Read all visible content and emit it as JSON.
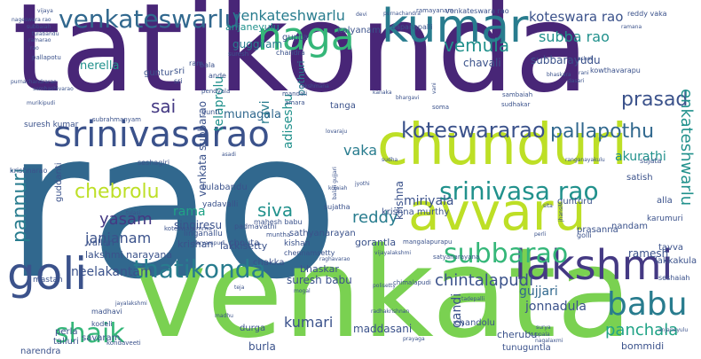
{
  "palette": {
    "dark_purple": "#482677",
    "violet": "#443983",
    "indigo": "#3b528b",
    "blue": "#31688e",
    "teal": "#287c8e",
    "cyan": "#21918c",
    "sea": "#20a386",
    "green": "#35b779",
    "lime": "#7ad151",
    "yellow_green": "#bddf26"
  },
  "words": [
    {
      "text": "tatikonda"
    },
    {
      "text": "rao"
    },
    {
      "text": "venkata"
    },
    {
      "text": "kumar"
    },
    {
      "text": "chunduri"
    },
    {
      "text": "srinivasarao"
    },
    {
      "text": "avvaru"
    },
    {
      "text": "lakshmi"
    },
    {
      "text": "srinivasa rao"
    },
    {
      "text": "goli"
    },
    {
      "text": "naga"
    },
    {
      "text": "venkateswarlu"
    },
    {
      "text": "venkateshwarlu"
    },
    {
      "text": "koteswara rao"
    },
    {
      "text": "koteswararao"
    },
    {
      "text": "subba rao"
    },
    {
      "text": "subbarayudu"
    },
    {
      "text": "vemula"
    },
    {
      "text": "prasad"
    },
    {
      "text": "pallapothu"
    },
    {
      "text": "enkateshwarlu"
    },
    {
      "text": "pannuri"
    },
    {
      "text": "chebrolu"
    },
    {
      "text": "sai"
    },
    {
      "text": "vaka"
    },
    {
      "text": "siva"
    },
    {
      "text": "rama"
    },
    {
      "text": "yasam"
    },
    {
      "text": "janjanam"
    },
    {
      "text": "singiresu"
    },
    {
      "text": "reddy"
    },
    {
      "text": "miriyala"
    },
    {
      "text": "krishna"
    },
    {
      "text": "thatikonda"
    },
    {
      "text": "subbarao"
    },
    {
      "text": "chintalapudi"
    },
    {
      "text": "babu"
    },
    {
      "text": "panchala"
    },
    {
      "text": "gujjari"
    },
    {
      "text": "shaik"
    },
    {
      "text": "kumari"
    },
    {
      "text": "jonnadula"
    },
    {
      "text": "gandi"
    },
    {
      "text": "neelakantam"
    },
    {
      "text": "lakkisetty"
    },
    {
      "text": "telaprolu"
    },
    {
      "text": "guggilam"
    },
    {
      "text": "nerella"
    },
    {
      "text": "anjaneyulu"
    },
    {
      "text": "chavali"
    },
    {
      "text": "kalyanam"
    },
    {
      "text": "gupta"
    },
    {
      "text": "venkata subbarao"
    },
    {
      "text": "adiseshu"
    },
    {
      "text": "pothuri"
    },
    {
      "text": "ravi"
    },
    {
      "text": "munagala"
    },
    {
      "text": "akurathi"
    },
    {
      "text": "satish"
    },
    {
      "text": "guntur"
    },
    {
      "text": "ramesh"
    },
    {
      "text": "nandam"
    },
    {
      "text": "tavva"
    },
    {
      "text": "lakkakula"
    },
    {
      "text": "alla"
    },
    {
      "text": "gorantla"
    },
    {
      "text": "krishan"
    },
    {
      "text": "tanga"
    },
    {
      "text": "cherubu"
    },
    {
      "text": "maddasani"
    },
    {
      "text": "bommidi"
    },
    {
      "text": "tunuguntla"
    },
    {
      "text": "chandolu"
    },
    {
      "text": "burla"
    },
    {
      "text": "durga"
    },
    {
      "text": "savaram"
    },
    {
      "text": "perla"
    },
    {
      "text": "talluri"
    },
    {
      "text": "narendra"
    },
    {
      "text": "kodeli"
    },
    {
      "text": "mastan"
    },
    {
      "text": "madhavi"
    },
    {
      "text": "bhaskar"
    },
    {
      "text": "suresh babu"
    },
    {
      "text": "chakka"
    },
    {
      "text": "chouta"
    },
    {
      "text": "lakshmi narayana"
    },
    {
      "text": "valluri"
    },
    {
      "text": "linganallu"
    },
    {
      "text": "tulabandu"
    },
    {
      "text": "sathyanarayan"
    },
    {
      "text": "chennamsetty"
    },
    {
      "text": "kishan"
    },
    {
      "text": "mahesh babu"
    },
    {
      "text": "padmavathi"
    },
    {
      "text": "muntha"
    },
    {
      "text": "yadavalli"
    },
    {
      "text": "krishna murthy"
    },
    {
      "text": "gunturu"
    },
    {
      "text": "sujatha"
    },
    {
      "text": "sujata"
    },
    {
      "text": "prasanna"
    },
    {
      "text": "karumuri"
    },
    {
      "text": "golli"
    },
    {
      "text": "guddanti"
    },
    {
      "text": "suresh kumar"
    },
    {
      "text": "subrahmanyam"
    },
    {
      "text": "seshagiri"
    },
    {
      "text": "krishnarao"
    },
    {
      "text": "chandra"
    },
    {
      "text": "bala"
    },
    {
      "text": "ande"
    },
    {
      "text": "pendyala"
    },
    {
      "text": "mandali"
    },
    {
      "text": "amara"
    },
    {
      "text": "gunti"
    },
    {
      "text": "soma"
    },
    {
      "text": "sambaiah"
    },
    {
      "text": "sudhakar"
    },
    {
      "text": "kowthavarapu"
    },
    {
      "text": "rani"
    },
    {
      "text": "bhaskara"
    },
    {
      "text": "dasari"
    },
    {
      "text": "ashok"
    },
    {
      "text": "bapanapalli"
    },
    {
      "text": "purnachandra"
    },
    {
      "text": "ramayanam"
    },
    {
      "text": "venkateswara rao"
    },
    {
      "text": "reddy vaka"
    },
    {
      "text": "devi"
    },
    {
      "text": "vijaya"
    },
    {
      "text": "nageswara rao"
    },
    {
      "text": "subbaiah"
    },
    {
      "text": "tulabandu"
    },
    {
      "text": "ramarao"
    },
    {
      "text": "rao"
    },
    {
      "text": "pallapotu"
    },
    {
      "text": "sambashivarao"
    },
    {
      "text": "murikipudi"
    },
    {
      "text": "purnachandrarao"
    },
    {
      "text": "sri"
    },
    {
      "text": "ram"
    },
    {
      "text": "sri"
    },
    {
      "text": "suresh"
    },
    {
      "text": "ramana"
    },
    {
      "text": "ranganayakulu"
    },
    {
      "text": "mangalapurapu"
    },
    {
      "text": "satyanarayana"
    },
    {
      "text": "raghavarao"
    },
    {
      "text": "jyothi"
    },
    {
      "text": "kuppala"
    },
    {
      "text": "vijayalakshmi"
    },
    {
      "text": "teja"
    },
    {
      "text": "mogal"
    },
    {
      "text": "lakshmana"
    },
    {
      "text": "jayalakshmi"
    },
    {
      "text": "madhu"
    },
    {
      "text": "prayaga"
    },
    {
      "text": "asadi"
    },
    {
      "text": "kondaveeti"
    },
    {
      "text": "seshaiah"
    },
    {
      "text": "anjaneyulu"
    },
    {
      "text": "nagalaxmi"
    },
    {
      "text": "surya"
    },
    {
      "text": "chimalapudi"
    },
    {
      "text": "polisetty"
    },
    {
      "text": "radhakrishnan"
    },
    {
      "text": "koteswaramma"
    },
    {
      "text": "karyampudi"
    },
    {
      "text": "tulasi"
    },
    {
      "text": "lovaraju"
    },
    {
      "text": "sudha"
    },
    {
      "text": "kanaka"
    },
    {
      "text": "bhargavi"
    },
    {
      "text": "vani"
    },
    {
      "text": "balaji gujjari"
    },
    {
      "text": "kolaiah"
    },
    {
      "text": "jhansi"
    },
    {
      "text": "perli"
    },
    {
      "text": "sita"
    },
    {
      "text": "tadepalli"
    },
    {
      "text": "jonnalagadda"
    }
  ]
}
